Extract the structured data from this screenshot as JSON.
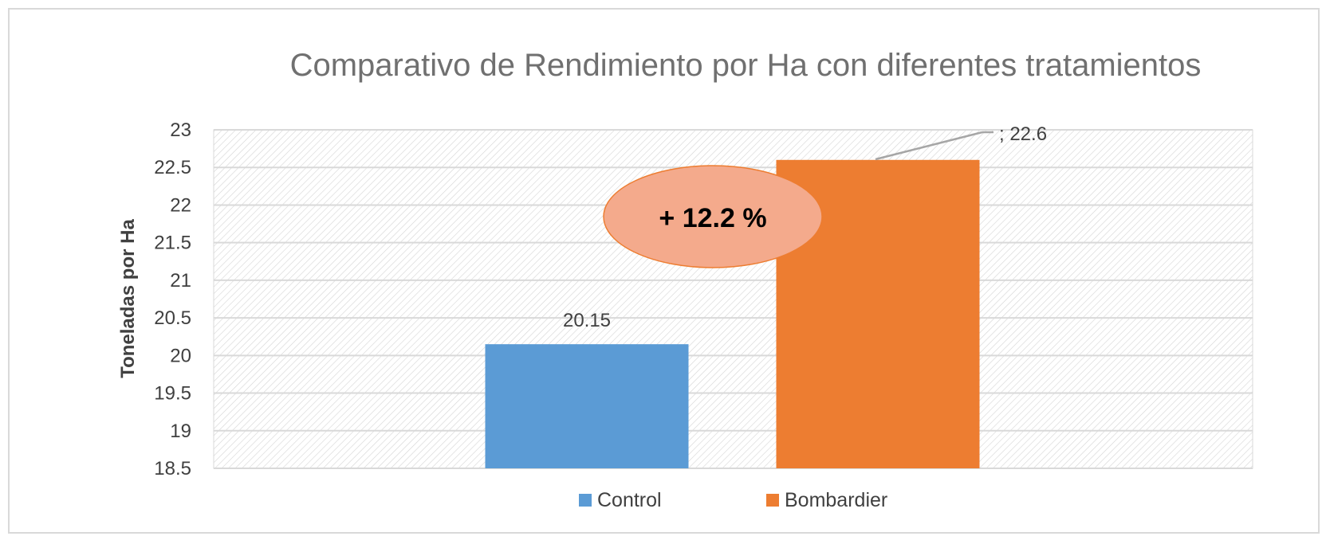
{
  "chart_data": {
    "type": "bar",
    "title": "Comparativo de Rendimiento por Ha con diferentes tratamientos",
    "xlabel": "",
    "ylabel": "Toneladas por Ha",
    "ylim": [
      18.5,
      23
    ],
    "y_ticks": [
      "18.5",
      "19",
      "19.5",
      "20",
      "20.5",
      "21",
      "21.5",
      "22",
      "22.5",
      "23"
    ],
    "grid": true,
    "legend_position": "bottom",
    "series": [
      {
        "name": "Control",
        "value": 20.15,
        "label": "20.15",
        "color": "#5b9bd5"
      },
      {
        "name": "Bombardier",
        "value": 22.6,
        "label": "; 22.6",
        "color": "#ed7d31"
      }
    ],
    "annotations": [
      {
        "text": "+ 12.2 %",
        "shape": "ellipse",
        "fill": "#f4a98a",
        "stroke": "#ed7d31"
      }
    ]
  }
}
